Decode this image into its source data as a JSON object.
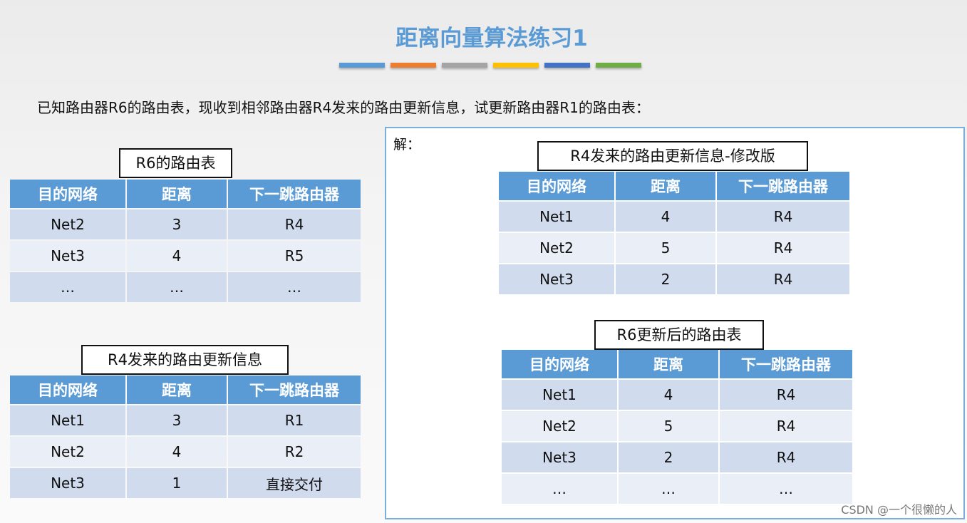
{
  "title": "距离向量算法练习1",
  "accent_bars": [
    "#5b9bd5",
    "#ed7d31",
    "#a5a5a5",
    "#ffc000",
    "#4472c4",
    "#70ad47"
  ],
  "question": "已知路由器R6的路由表，现收到相邻路由器R4发来的路由更新信息，试更新路由器R1的路由表：",
  "answer_label": "解：",
  "columns": [
    "目的网络",
    "距离",
    "下一跳路由器"
  ],
  "tables": [
    {
      "caption": "R6的路由表",
      "rows": [
        [
          "Net2",
          "3",
          "R4"
        ],
        [
          "Net3",
          "4",
          "R5"
        ],
        [
          "…",
          "…",
          "…"
        ]
      ]
    },
    {
      "caption": "R4发来的路由更新信息",
      "rows": [
        [
          "Net1",
          "3",
          "R1"
        ],
        [
          "Net2",
          "4",
          "R2"
        ],
        [
          "Net3",
          "1",
          "直接交付"
        ]
      ]
    },
    {
      "caption": "R4发来的路由更新信息-修改版",
      "rows": [
        [
          "Net1",
          "4",
          "R4"
        ],
        [
          "Net2",
          "5",
          "R4"
        ],
        [
          "Net3",
          "2",
          "R4"
        ]
      ]
    },
    {
      "caption": "R6更新后的路由表",
      "rows": [
        [
          "Net1",
          "4",
          "R4"
        ],
        [
          "Net2",
          "5",
          "R4"
        ],
        [
          "Net3",
          "2",
          "R4"
        ],
        [
          "…",
          "…",
          "…"
        ]
      ]
    }
  ],
  "watermark": "CSDN @一个很懒的人"
}
